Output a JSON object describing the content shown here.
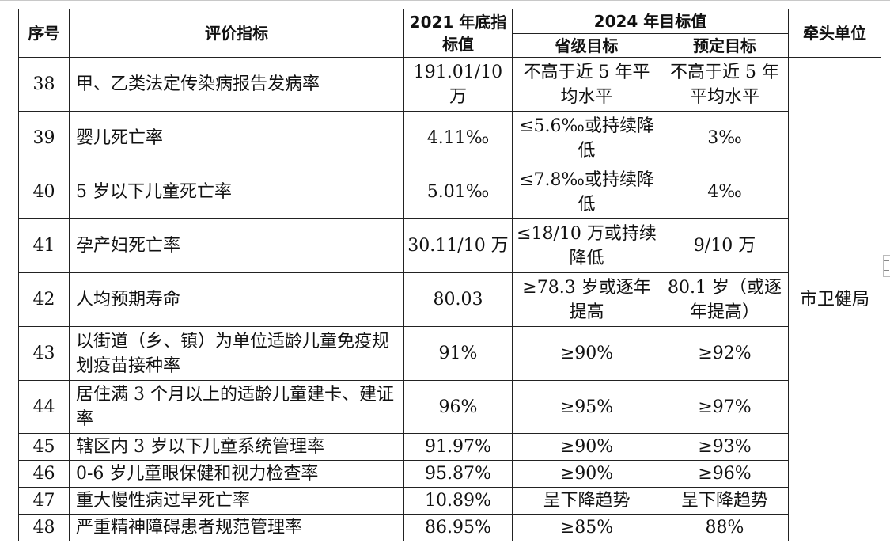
{
  "header": {
    "seq": "序号",
    "indicator": "评价指标",
    "baseline": "2021 年底指标值",
    "target_group": "2024 年目标值",
    "provincial": "省级目标",
    "planned": "预定目标",
    "lead_unit": "牵头单位"
  },
  "lead_unit_value": "市卫健局",
  "rows": [
    {
      "seq": "38",
      "indicator": "甲、乙类法定传染病报告发病率",
      "baseline": "191.01/10 万",
      "provincial": "不高于近 5 年平均水平",
      "planned": "不高于近 5 年平均水平"
    },
    {
      "seq": "39",
      "indicator": "婴儿死亡率",
      "baseline": "4.11‰",
      "provincial": "≤5.6‰或持续降低",
      "planned": "3‰"
    },
    {
      "seq": "40",
      "indicator": "5 岁以下儿童死亡率",
      "baseline": "5.01‰",
      "provincial": "≤7.8‰或持续降低",
      "planned": "4‰"
    },
    {
      "seq": "41",
      "indicator": "孕产妇死亡率",
      "baseline": "30.11/10 万",
      "provincial": "≤18/10 万或持续降低",
      "planned": "9/10 万"
    },
    {
      "seq": "42",
      "indicator": "人均预期寿命",
      "baseline": "80.03",
      "provincial": "≥78.3 岁或逐年提高",
      "planned": "80.1 岁（或逐年提高）"
    },
    {
      "seq": "43",
      "indicator": "以街道（乡、镇）为单位适龄儿童免疫规划疫苗接种率",
      "baseline": "91%",
      "provincial": "≥90%",
      "planned": "≥92%"
    },
    {
      "seq": "44",
      "indicator": "居住满 3 个月以上的适龄儿童建卡、建证率",
      "baseline": "96%",
      "provincial": "≥95%",
      "planned": "≥97%"
    },
    {
      "seq": "45",
      "indicator": "辖区内 3 岁以下儿童系统管理率",
      "baseline": "91.97%",
      "provincial": "≥90%",
      "planned": "≥93%"
    },
    {
      "seq": "46",
      "indicator": "0-6 岁儿童眼保健和视力检查率",
      "baseline": "95.87%",
      "provincial": "≥90%",
      "planned": "≥96%"
    },
    {
      "seq": "47",
      "indicator": "重大慢性病过早死亡率",
      "baseline": "10.89%",
      "provincial": "呈下降趋势",
      "planned": "呈下降趋势"
    },
    {
      "seq": "48",
      "indicator": "严重精神障碍患者规范管理率",
      "baseline": "86.95%",
      "provincial": "≥85%",
      "planned": "88%"
    }
  ]
}
